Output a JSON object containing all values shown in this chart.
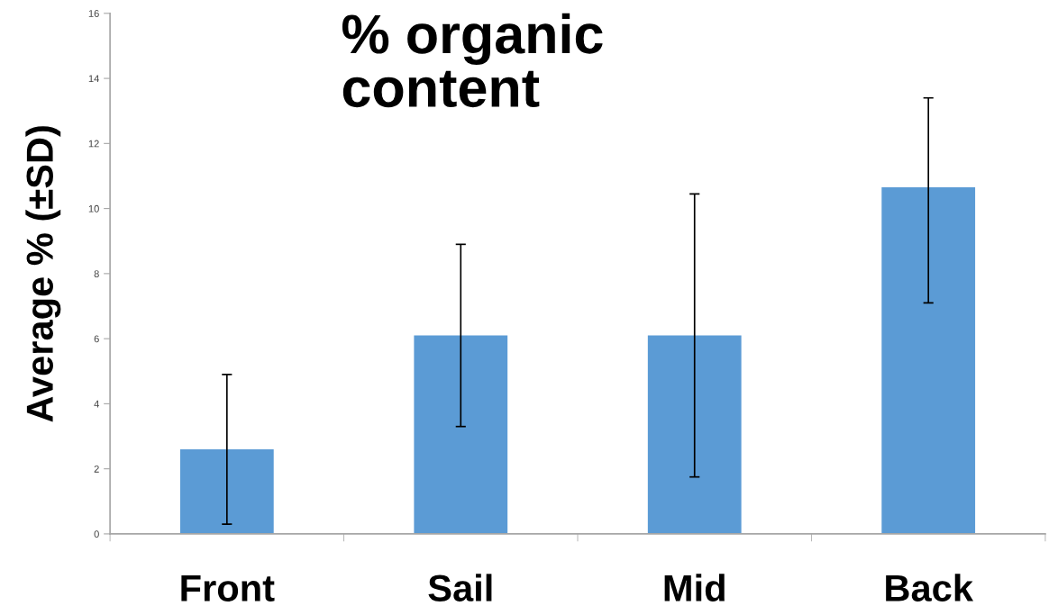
{
  "chart_data": {
    "type": "bar",
    "title": "% organic\ncontent",
    "ylabel": "Average % (±SD)",
    "categories": [
      "Front",
      "Sail",
      "Mid",
      "Back"
    ],
    "values": [
      2.6,
      6.1,
      6.1,
      10.65
    ],
    "errors": [
      2.3,
      2.8,
      4.35,
      [
        7.1,
        13.4
      ]
    ],
    "color": "#5b9bd5",
    "ylim": [
      0,
      16
    ],
    "yticks": [
      0,
      2,
      4,
      6,
      8,
      10,
      12,
      14,
      16
    ],
    "grid": false
  }
}
